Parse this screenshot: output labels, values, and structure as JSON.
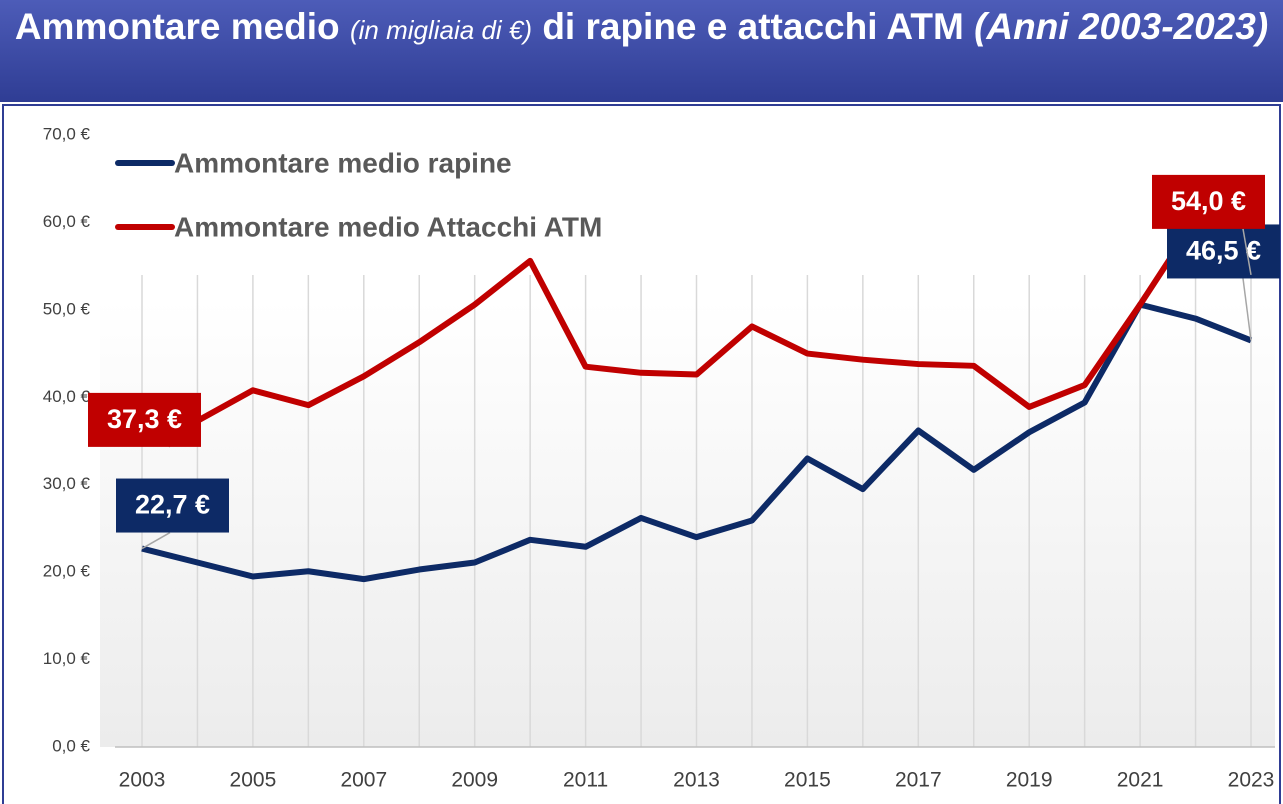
{
  "chart_data": {
    "type": "line",
    "title": {
      "part1": "Ammontare medio",
      "part2": "(in migliaia di €)",
      "part3": "di rapine e attacchi ATM",
      "part4": "(Anni 2003-2023)"
    },
    "x": [
      2003,
      2004,
      2005,
      2006,
      2007,
      2008,
      2009,
      2010,
      2011,
      2012,
      2013,
      2014,
      2015,
      2016,
      2017,
      2018,
      2019,
      2020,
      2021,
      2022,
      2023
    ],
    "xlim": [
      2003,
      2023
    ],
    "xticks": [
      2003,
      2005,
      2007,
      2009,
      2011,
      2013,
      2015,
      2017,
      2019,
      2021,
      2023
    ],
    "ylim": [
      0,
      70
    ],
    "yticks": [
      {
        "value": 0,
        "label": "0,0 €"
      },
      {
        "value": 10,
        "label": "10,0 €"
      },
      {
        "value": 20,
        "label": "20,0 €"
      },
      {
        "value": 30,
        "label": "30,0 €"
      },
      {
        "value": 40,
        "label": "40,0 €"
      },
      {
        "value": 50,
        "label": "50,0 €"
      },
      {
        "value": 60,
        "label": "60,0 €"
      },
      {
        "value": 70,
        "label": "70,0 €"
      }
    ],
    "grid": "x",
    "series": [
      {
        "name": "Ammontare medio rapine",
        "color": "#0d2a66",
        "values": [
          22.7,
          21.1,
          19.5,
          20.1,
          19.2,
          20.3,
          21.1,
          23.7,
          22.9,
          26.2,
          24.0,
          25.9,
          33.0,
          29.5,
          36.2,
          31.7,
          36.0,
          39.4,
          50.6,
          49.0,
          46.5
        ],
        "value_labels": [
          "22,7 €",
          null,
          null,
          null,
          null,
          null,
          null,
          null,
          null,
          null,
          null,
          null,
          null,
          null,
          null,
          null,
          null,
          null,
          null,
          null,
          "46,5 €"
        ]
      },
      {
        "name": "Ammontare medio Attacchi ATM",
        "color": "#c00000",
        "values": [
          37.3,
          37.3,
          40.8,
          39.1,
          42.4,
          46.3,
          50.6,
          55.6,
          43.5,
          42.8,
          42.6,
          48.1,
          45.0,
          44.3,
          43.8,
          43.6,
          38.9,
          41.4,
          50.6,
          60.3,
          54.0
        ],
        "value_labels": [
          "37,3 €",
          null,
          null,
          null,
          null,
          null,
          null,
          null,
          null,
          null,
          null,
          null,
          null,
          null,
          null,
          null,
          null,
          null,
          null,
          null,
          "54,0 €"
        ]
      }
    ]
  }
}
